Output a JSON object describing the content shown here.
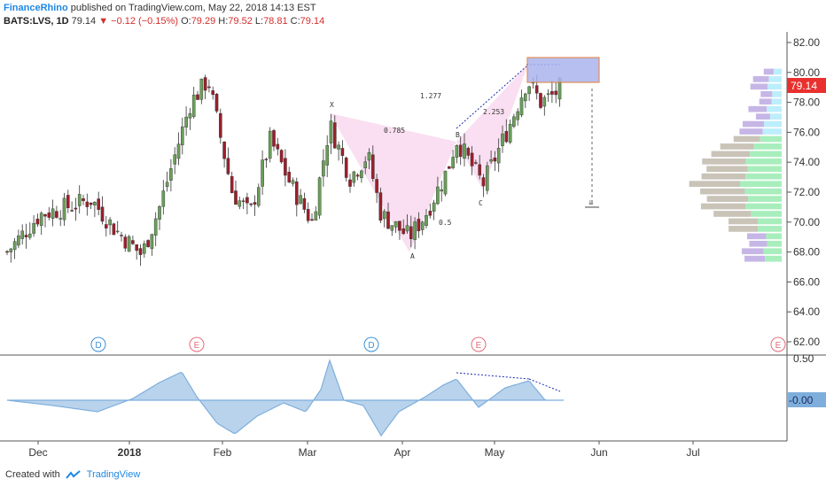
{
  "header": {
    "brand": "FinanceRhino",
    "published": "published on TradingView.com, May 22, 2018 14:13 EST"
  },
  "quote": {
    "symbol": "BATS:LVS, 1D",
    "last": "79.14",
    "change": "−0.12 (−0.15%)",
    "open_label": "O:",
    "open": "79.29",
    "high_label": "H:",
    "high": "79.52",
    "low_label": "L:",
    "low": "78.81",
    "close_label": "C:",
    "close": "79.14"
  },
  "footer": {
    "created_with": "Created with",
    "brand": "TradingView"
  },
  "colors": {
    "up": "#6b9e5a",
    "down": "#9c1f2a",
    "harmonic_fill": "#f8d9ee",
    "target_box": "#aab4ee",
    "target_border": "#e07b39",
    "price_tag": "#e8312f",
    "osc_fill": "#b9d3ec",
    "osc_line": "#7eaedc",
    "vp_up": "#a8eebc",
    "vp_down": "#c9c3b8",
    "vp_purple": "#c6b6e6",
    "vp_cyan": "#bdeefb"
  },
  "chart_data": {
    "type": "candlestick",
    "title": "",
    "price_axis": {
      "min": 61,
      "max": 83,
      "ticks": [
        "82.00",
        "80.00",
        "78.00",
        "76.00",
        "74.00",
        "72.00",
        "70.00",
        "68.00",
        "66.00",
        "64.00",
        "62.00"
      ]
    },
    "time_axis_labels": [
      "Dec",
      "2018",
      "Feb",
      "Mar",
      "Apr",
      "May",
      "Jun",
      "Jul"
    ],
    "last_price": "79.14",
    "candles_sample": [
      {
        "d": "Dec",
        "c": 68.0
      },
      {
        "d": "2018",
        "c": 68.5
      },
      {
        "d": "Jan peak",
        "h": 80.0
      },
      {
        "d": "Mar",
        "c": 76.5
      },
      {
        "d": "Apr",
        "l": 68.6
      },
      {
        "d": "May",
        "c": 78.5
      },
      {
        "d": "May 22",
        "c": 79.14
      }
    ],
    "harmonic_labels": {
      "X": "X",
      "A": "A",
      "B": "B",
      "C": "C",
      "r1": "0.785",
      "r2": "1.277",
      "r3": "0.5",
      "r4": "2.253"
    },
    "events": [
      "D",
      "E",
      "D",
      "E",
      "E"
    ],
    "oscillator": {
      "ticks": [
        "0.50",
        "-0.00"
      ],
      "last": "-0.00"
    }
  }
}
